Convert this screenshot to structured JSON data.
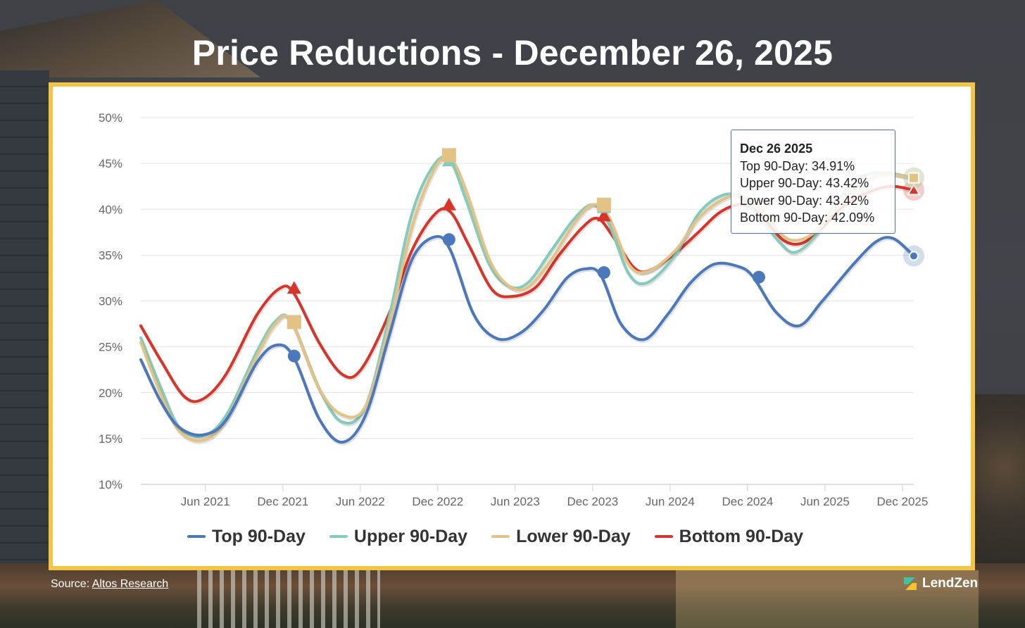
{
  "title": "Price Reductions - December 26, 2025",
  "source": {
    "label": "Source:",
    "link_text": "Altos Research"
  },
  "brand": {
    "name": "LendZen"
  },
  "tooltip": {
    "date": "Dec 26 2025",
    "lines": [
      "Top 90-Day: 34.91%",
      "Upper 90-Day: 43.42%",
      "Lower 90-Day: 43.42%",
      "Bottom 90-Day: 42.09%"
    ]
  },
  "chart_data": {
    "type": "line",
    "title": "Price Reductions - December 26, 2025",
    "xlabel": "",
    "ylabel": "",
    "ylim": [
      10,
      50
    ],
    "y_ticks": [
      "10%",
      "15%",
      "20%",
      "25%",
      "30%",
      "35%",
      "40%",
      "45%",
      "50%"
    ],
    "x_tick_labels": [
      "Jun 2021",
      "Dec 2021",
      "Jun 2022",
      "Dec 2022",
      "Jun 2023",
      "Dec 2023",
      "Jun 2024",
      "Dec 2024",
      "Jun 2025",
      "Dec 2025"
    ],
    "x_tick_dates": [
      2021.417,
      2021.917,
      2022.417,
      2022.917,
      2023.417,
      2023.917,
      2024.417,
      2024.917,
      2025.417,
      2025.917
    ],
    "xlim": [
      2021.0,
      2025.99
    ],
    "grid": true,
    "legend_position": "bottom",
    "series": [
      {
        "name": "Top 90-Day",
        "color": "#4a78bb",
        "marker": "circle",
        "points": [
          [
            2021.0,
            23.6
          ],
          [
            2021.13,
            19.0
          ],
          [
            2021.25,
            16.2
          ],
          [
            2021.4,
            15.4
          ],
          [
            2021.55,
            17.0
          ],
          [
            2021.75,
            23.3
          ],
          [
            2021.88,
            25.2
          ],
          [
            2021.99,
            23.8
          ],
          [
            2022.15,
            17.2
          ],
          [
            2022.3,
            14.6
          ],
          [
            2022.45,
            17.5
          ],
          [
            2022.6,
            26.0
          ],
          [
            2022.75,
            34.5
          ],
          [
            2022.9,
            37.0
          ],
          [
            2023.0,
            35.5
          ],
          [
            2023.15,
            28.5
          ],
          [
            2023.3,
            25.9
          ],
          [
            2023.45,
            26.5
          ],
          [
            2023.6,
            29.0
          ],
          [
            2023.75,
            32.5
          ],
          [
            2023.87,
            33.5
          ],
          [
            2023.97,
            32.8
          ],
          [
            2024.1,
            27.5
          ],
          [
            2024.25,
            25.8
          ],
          [
            2024.4,
            28.5
          ],
          [
            2024.55,
            32.0
          ],
          [
            2024.7,
            34.0
          ],
          [
            2024.85,
            33.8
          ],
          [
            2024.95,
            32.7
          ],
          [
            2025.1,
            28.8
          ],
          [
            2025.25,
            27.3
          ],
          [
            2025.4,
            30.0
          ],
          [
            2025.6,
            34.0
          ],
          [
            2025.75,
            36.5
          ],
          [
            2025.86,
            36.8
          ],
          [
            2025.99,
            34.91
          ]
        ],
        "markers_at": [
          [
            2021.99,
            24.0
          ],
          [
            2022.99,
            36.7
          ],
          [
            2023.99,
            33.1
          ],
          [
            2024.99,
            32.6
          ],
          [
            2025.99,
            34.91
          ]
        ]
      },
      {
        "name": "Upper 90-Day",
        "color": "#84cbbd",
        "marker": "triangle",
        "points": [
          [
            2021.0,
            26.0
          ],
          [
            2021.13,
            20.5
          ],
          [
            2021.25,
            16.2
          ],
          [
            2021.4,
            15.3
          ],
          [
            2021.55,
            17.5
          ],
          [
            2021.75,
            24.5
          ],
          [
            2021.87,
            27.8
          ],
          [
            2021.97,
            27.8
          ],
          [
            2022.15,
            20.5
          ],
          [
            2022.3,
            16.8
          ],
          [
            2022.45,
            18.5
          ],
          [
            2022.6,
            28.0
          ],
          [
            2022.75,
            39.5
          ],
          [
            2022.9,
            45.0
          ],
          [
            2023.0,
            45.2
          ],
          [
            2023.1,
            41.0
          ],
          [
            2023.25,
            34.0
          ],
          [
            2023.38,
            31.6
          ],
          [
            2023.5,
            32.0
          ],
          [
            2023.65,
            35.5
          ],
          [
            2023.8,
            39.0
          ],
          [
            2023.92,
            40.5
          ],
          [
            2024.02,
            38.5
          ],
          [
            2024.15,
            33.0
          ],
          [
            2024.27,
            32.0
          ],
          [
            2024.45,
            35.0
          ],
          [
            2024.6,
            39.5
          ],
          [
            2024.75,
            41.5
          ],
          [
            2024.87,
            41.3
          ],
          [
            2025.0,
            39.0
          ],
          [
            2025.12,
            36.5
          ],
          [
            2025.22,
            35.3
          ],
          [
            2025.35,
            37.0
          ],
          [
            2025.5,
            41.0
          ],
          [
            2025.65,
            43.5
          ],
          [
            2025.8,
            44.0
          ],
          [
            2025.99,
            43.42
          ]
        ],
        "markers_at": [
          [
            2022.99,
            45.3
          ],
          [
            2023.99,
            40.2
          ],
          [
            2025.99,
            43.42
          ]
        ]
      },
      {
        "name": "Lower 90-Day",
        "color": "#e2c385",
        "marker": "square",
        "points": [
          [
            2021.0,
            25.5
          ],
          [
            2021.13,
            19.8
          ],
          [
            2021.25,
            15.8
          ],
          [
            2021.4,
            14.8
          ],
          [
            2021.55,
            17.0
          ],
          [
            2021.75,
            24.0
          ],
          [
            2021.87,
            27.5
          ],
          [
            2021.97,
            27.8
          ],
          [
            2022.15,
            20.5
          ],
          [
            2022.3,
            17.6
          ],
          [
            2022.45,
            18.5
          ],
          [
            2022.6,
            27.0
          ],
          [
            2022.75,
            38.0
          ],
          [
            2022.9,
            44.5
          ],
          [
            2023.0,
            45.5
          ],
          [
            2023.1,
            42.0
          ],
          [
            2023.25,
            34.5
          ],
          [
            2023.38,
            31.6
          ],
          [
            2023.5,
            31.5
          ],
          [
            2023.65,
            34.5
          ],
          [
            2023.8,
            38.5
          ],
          [
            2023.92,
            40.5
          ],
          [
            2024.02,
            39.2
          ],
          [
            2024.15,
            34.0
          ],
          [
            2024.27,
            33.2
          ],
          [
            2024.45,
            35.5
          ],
          [
            2024.6,
            39.0
          ],
          [
            2024.75,
            41.0
          ],
          [
            2024.87,
            41.5
          ],
          [
            2025.0,
            40.0
          ],
          [
            2025.12,
            37.5
          ],
          [
            2025.22,
            36.6
          ],
          [
            2025.35,
            37.5
          ],
          [
            2025.5,
            40.5
          ],
          [
            2025.65,
            42.8
          ],
          [
            2025.8,
            43.8
          ],
          [
            2025.99,
            43.42
          ]
        ],
        "markers_at": [
          [
            2021.99,
            27.7
          ],
          [
            2022.99,
            45.9
          ],
          [
            2023.99,
            40.5
          ],
          [
            2025.99,
            43.42
          ]
        ]
      },
      {
        "name": "Bottom 90-Day",
        "color": "#d8352a",
        "marker": "triangle",
        "points": [
          [
            2021.0,
            27.3
          ],
          [
            2021.13,
            23.5
          ],
          [
            2021.28,
            19.6
          ],
          [
            2021.4,
            19.3
          ],
          [
            2021.55,
            22.0
          ],
          [
            2021.75,
            28.5
          ],
          [
            2021.9,
            31.4
          ],
          [
            2021.99,
            30.8
          ],
          [
            2022.15,
            25.5
          ],
          [
            2022.3,
            22.0
          ],
          [
            2022.42,
            22.5
          ],
          [
            2022.6,
            28.5
          ],
          [
            2022.75,
            35.5
          ],
          [
            2022.9,
            39.5
          ],
          [
            2023.0,
            39.7
          ],
          [
            2023.12,
            36.0
          ],
          [
            2023.27,
            31.2
          ],
          [
            2023.4,
            30.5
          ],
          [
            2023.55,
            31.5
          ],
          [
            2023.7,
            35.0
          ],
          [
            2023.85,
            38.0
          ],
          [
            2023.95,
            39.0
          ],
          [
            2024.05,
            37.0
          ],
          [
            2024.18,
            33.7
          ],
          [
            2024.28,
            33.3
          ],
          [
            2024.45,
            35.2
          ],
          [
            2024.6,
            37.5
          ],
          [
            2024.75,
            39.8
          ],
          [
            2024.9,
            40.5
          ],
          [
            2025.02,
            39.0
          ],
          [
            2025.15,
            36.6
          ],
          [
            2025.27,
            36.3
          ],
          [
            2025.4,
            38.0
          ],
          [
            2025.55,
            40.5
          ],
          [
            2025.72,
            42.0
          ],
          [
            2025.85,
            42.5
          ],
          [
            2025.99,
            42.09
          ]
        ],
        "markers_at": [
          [
            2021.99,
            31.4
          ],
          [
            2022.99,
            40.5
          ],
          [
            2023.99,
            39.3
          ],
          [
            2025.99,
            42.09
          ]
        ]
      }
    ]
  }
}
